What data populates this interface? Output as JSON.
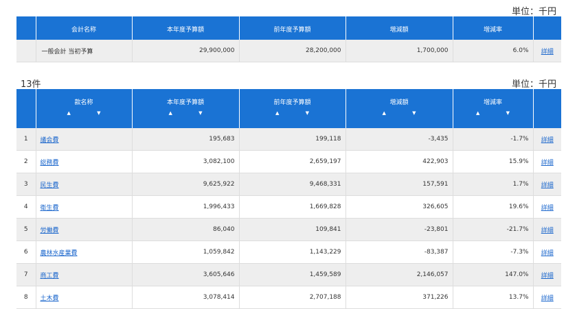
{
  "unit_label": "単位：千円",
  "summary": {
    "headers": [
      "会計名称",
      "本年度予算額",
      "前年度予算額",
      "増減額",
      "増減率"
    ],
    "row": {
      "name": "一般会計 当初予算",
      "current": "29,900,000",
      "previous": "28,200,000",
      "diff": "1,700,000",
      "rate": "6.0%",
      "detail": "詳細"
    }
  },
  "count_label": "13件",
  "detail_table": {
    "headers": [
      "款名称",
      "本年度予算額",
      "前年度予算額",
      "増減額",
      "増減率"
    ],
    "sort_icons": "▲ ▼",
    "rows": [
      {
        "no": "1",
        "name": "議会費",
        "current": "195,683",
        "previous": "199,118",
        "diff": "-3,435",
        "rate": "-1.7%",
        "detail": "詳細"
      },
      {
        "no": "2",
        "name": "総務費",
        "current": "3,082,100",
        "previous": "2,659,197",
        "diff": "422,903",
        "rate": "15.9%",
        "detail": "詳細"
      },
      {
        "no": "3",
        "name": "民生費",
        "current": "9,625,922",
        "previous": "9,468,331",
        "diff": "157,591",
        "rate": "1.7%",
        "detail": "詳細"
      },
      {
        "no": "4",
        "name": "衛生費",
        "current": "1,996,433",
        "previous": "1,669,828",
        "diff": "326,605",
        "rate": "19.6%",
        "detail": "詳細"
      },
      {
        "no": "5",
        "name": "労働費",
        "current": "86,040",
        "previous": "109,841",
        "diff": "-23,801",
        "rate": "-21.7%",
        "detail": "詳細"
      },
      {
        "no": "6",
        "name": "農林水産業費",
        "current": "1,059,842",
        "previous": "1,143,229",
        "diff": "-83,387",
        "rate": "-7.3%",
        "detail": "詳細"
      },
      {
        "no": "7",
        "name": "商工費",
        "current": "3,605,646",
        "previous": "1,459,589",
        "diff": "2,146,057",
        "rate": "147.0%",
        "detail": "詳細"
      },
      {
        "no": "8",
        "name": "土木費",
        "current": "3,078,414",
        "previous": "2,707,188",
        "diff": "371,226",
        "rate": "13.7%",
        "detail": "詳細"
      }
    ]
  }
}
